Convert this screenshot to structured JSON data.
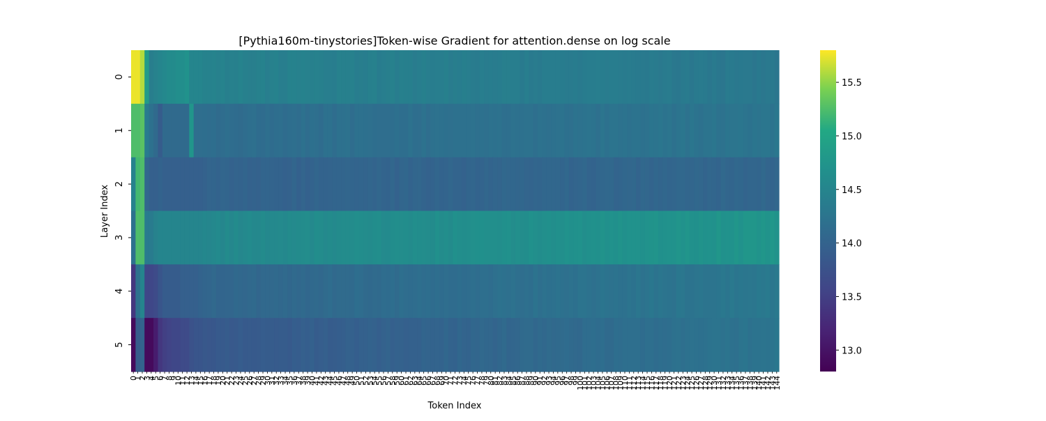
{
  "chart_data": {
    "type": "heatmap",
    "title": "[Pythia160m-tinystories]Token-wise Gradient for attention.dense on log scale",
    "xlabel": "Token Index",
    "ylabel": "Layer Index",
    "y_categories": [
      "0",
      "1",
      "2",
      "3",
      "4",
      "5"
    ],
    "x_range": [
      0,
      144
    ],
    "colormap": "viridis",
    "colorbar": {
      "vmin": 12.8,
      "vmax": 15.8,
      "ticks": [
        13.0,
        13.5,
        14.0,
        14.5,
        15.0,
        15.5
      ]
    },
    "grid": false,
    "rows": [
      {
        "layer": "0",
        "head": [
          15.75,
          15.75,
          15.6,
          14.85,
          14.4,
          14.45,
          14.5,
          14.55,
          14.6,
          14.6,
          14.65,
          14.65,
          14.7,
          14.5,
          14.5,
          14.5
        ],
        "tail_start": 14.45,
        "tail_end": 14.3
      },
      {
        "layer": "1",
        "head": [
          15.25,
          15.25,
          15.3,
          14.35,
          14.2,
          14.1,
          13.9,
          14.1,
          14.1,
          14.1,
          14.1,
          14.1,
          14.1,
          14.75,
          14.15,
          14.15
        ],
        "tail_start": 14.15,
        "tail_end": 14.25
      },
      {
        "layer": "2",
        "head": [
          14.45,
          15.2,
          15.25,
          14.05,
          13.95,
          13.95,
          14.0,
          13.95,
          13.95,
          13.95,
          13.95,
          13.95,
          13.95,
          13.95,
          13.95,
          13.95
        ],
        "tail_start": 14.0,
        "tail_end": 14.05
      },
      {
        "layer": "3",
        "head": [
          14.2,
          15.25,
          15.25,
          14.35,
          14.35,
          14.45,
          14.5,
          14.5,
          14.5,
          14.5,
          14.5,
          14.5,
          14.5,
          14.5,
          14.5,
          14.5
        ],
        "tail_start": 14.55,
        "tail_end": 14.75
      },
      {
        "layer": "4",
        "head": [
          13.4,
          14.2,
          14.5,
          13.6,
          13.6,
          13.65,
          13.8,
          13.9,
          13.9,
          13.9,
          13.9,
          13.95,
          13.95,
          13.95,
          13.95,
          14.0
        ],
        "tail_start": 14.05,
        "tail_end": 14.3
      },
      {
        "layer": "5",
        "head": [
          12.9,
          13.9,
          14.0,
          12.9,
          12.9,
          13.1,
          13.4,
          13.5,
          13.55,
          13.6,
          13.6,
          13.65,
          13.65,
          13.75,
          13.8,
          13.8
        ],
        "tail_start": 13.85,
        "tail_end": 14.25
      }
    ]
  }
}
